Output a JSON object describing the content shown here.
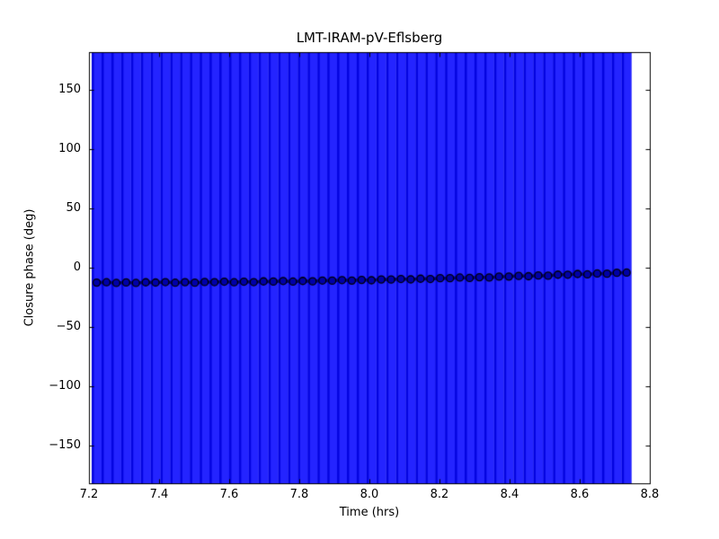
{
  "figure": {
    "background": "#ffffff"
  },
  "chart_data": {
    "type": "line",
    "subtype": "errorbar",
    "title": "LMT-IRAM-pV-Eflsberg",
    "xlabel": "Time (hrs)",
    "ylabel": "Closure phase (deg)",
    "xlim": [
      7.2,
      8.8
    ],
    "ylim": [
      -182,
      182
    ],
    "grid": false,
    "legend": null,
    "marker": "circle",
    "x_tick_values": [
      7.2,
      7.4,
      7.6,
      7.8,
      8.0,
      8.2,
      8.4,
      8.6,
      8.8
    ],
    "x_tick_labels": [
      "7.2",
      "7.4",
      "7.6",
      "7.8",
      "8.0",
      "8.2",
      "8.4",
      "8.6",
      "8.8"
    ],
    "y_tick_values": [
      150,
      100,
      50,
      0,
      -50,
      -100,
      -150
    ],
    "y_tick_labels": [
      "150",
      "100",
      "50",
      "0",
      "−50",
      "−100",
      "−150"
    ],
    "series": [
      {
        "name": "closure phase",
        "x": [
          7.222,
          7.25,
          7.278,
          7.306,
          7.334,
          7.362,
          7.39,
          7.418,
          7.446,
          7.474,
          7.502,
          7.53,
          7.558,
          7.586,
          7.614,
          7.642,
          7.67,
          7.698,
          7.726,
          7.754,
          7.782,
          7.81,
          7.838,
          7.866,
          7.894,
          7.922,
          7.95,
          7.978,
          8.006,
          8.034,
          8.062,
          8.09,
          8.118,
          8.146,
          8.174,
          8.202,
          8.23,
          8.258,
          8.286,
          8.314,
          8.342,
          8.37,
          8.398,
          8.426,
          8.454,
          8.482,
          8.51,
          8.538,
          8.566,
          8.594,
          8.622,
          8.65,
          8.678,
          8.706,
          8.734
        ],
        "y": [
          -12.6,
          -12.3,
          -12.84,
          -12.42,
          -12.85,
          -12.33,
          -12.5,
          -12.16,
          -12.66,
          -12.21,
          -12.61,
          -12.05,
          -12.18,
          -11.81,
          -12.28,
          -11.8,
          -12.16,
          -11.56,
          -11.66,
          -11.25,
          -11.69,
          -11.17,
          -11.49,
          -10.86,
          -10.92,
          -10.48,
          -10.88,
          -10.33,
          -10.62,
          -9.95,
          -9.98,
          -9.5,
          -9.87,
          -9.28,
          -9.54,
          -8.84,
          -8.83,
          -8.32,
          -8.65,
          -8.03,
          -8.25,
          -7.51,
          -7.47,
          -6.92,
          -7.22,
          -6.56,
          -6.74,
          -5.87,
          -5.9,
          -5.31,
          -5.63,
          -4.88,
          -5.03,
          -4.28,
          -4.11
        ],
        "yerr": 180
      }
    ],
    "colors": {
      "errorbar": "#2424ff",
      "errorbar_stripe": "#0404e0",
      "line": "#000080",
      "marker_fill": "#0000a8",
      "marker_edge": "#000000",
      "frame": "#000000",
      "background": "#ffffff"
    }
  }
}
